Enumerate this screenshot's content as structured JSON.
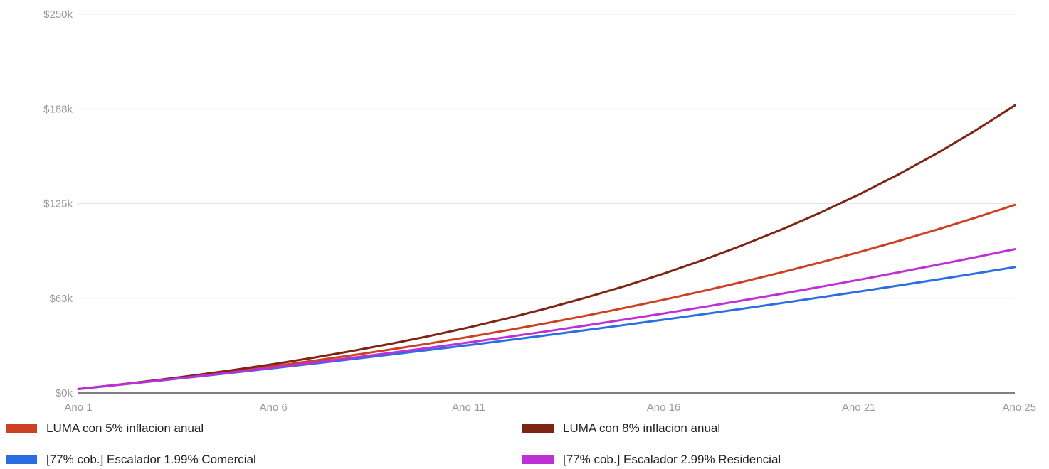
{
  "chart_data": {
    "type": "line",
    "categories": [
      "Ano 1",
      "Ano 2",
      "Ano 3",
      "Ano 4",
      "Ano 5",
      "Ano 6",
      "Ano 7",
      "Ano 8",
      "Ano 9",
      "Ano 10",
      "Ano 11",
      "Ano 12",
      "Ano 13",
      "Ano 14",
      "Ano 15",
      "Ano 16",
      "Ano 17",
      "Ano 18",
      "Ano 19",
      "Ano 20",
      "Ano 21",
      "Ano 22",
      "Ano 23",
      "Ano 24",
      "Ano 25"
    ],
    "x_tick_labels": [
      "Ano 1",
      "Ano 6",
      "Ano 11",
      "Ano 16",
      "Ano 21",
      "Ano 25"
    ],
    "y_ticks": [
      {
        "value": 0,
        "label": "$0k"
      },
      {
        "value": 62500,
        "label": "$63k"
      },
      {
        "value": 125000,
        "label": "$125k"
      },
      {
        "value": 187500,
        "label": "$188k"
      },
      {
        "value": 250000,
        "label": "$250k"
      }
    ],
    "ylim": [
      0,
      250000
    ],
    "grid": true,
    "legend_position": "bottom",
    "series": [
      {
        "name": "LUMA con 5% inflacion anual",
        "color": "#cc4122",
        "values": [
          2600,
          5330,
          8200,
          11210,
          14370,
          17690,
          21170,
          24830,
          28670,
          32710,
          36950,
          41400,
          46070,
          50980,
          56130,
          61540,
          67220,
          73180,
          79440,
          86010,
          92910,
          100160,
          107770,
          115760,
          124150
        ]
      },
      {
        "name": "LUMA con 8% inflacion anual",
        "color": "#7d2414",
        "values": [
          2600,
          5410,
          8440,
          11720,
          15240,
          19060,
          23180,
          27620,
          32430,
          37620,
          43230,
          49280,
          55820,
          62890,
          70520,
          78750,
          87650,
          97260,
          107630,
          118830,
          130930,
          144000,
          158120,
          173370,
          189830
        ]
      },
      {
        "name": "[77% cob.] Escalador 1.99% Comercial",
        "color": "#2a6ee1",
        "values": [
          2600,
          5250,
          7950,
          10700,
          13510,
          16380,
          19300,
          22280,
          25320,
          28420,
          31580,
          34810,
          38100,
          41450,
          44870,
          48360,
          51920,
          55550,
          59250,
          63030,
          66880,
          70810,
          74810,
          78900,
          83060
        ]
      },
      {
        "name": "[77% cob.] Escalador 2.99% Residencial",
        "color": "#bf2fd6",
        "values": [
          2600,
          5280,
          8040,
          10870,
          13810,
          16830,
          19940,
          23150,
          26450,
          29850,
          33350,
          36960,
          40670,
          44490,
          48430,
          52490,
          56670,
          60970,
          65400,
          69970,
          74670,
          79510,
          84500,
          89630,
          94920
        ]
      }
    ]
  }
}
